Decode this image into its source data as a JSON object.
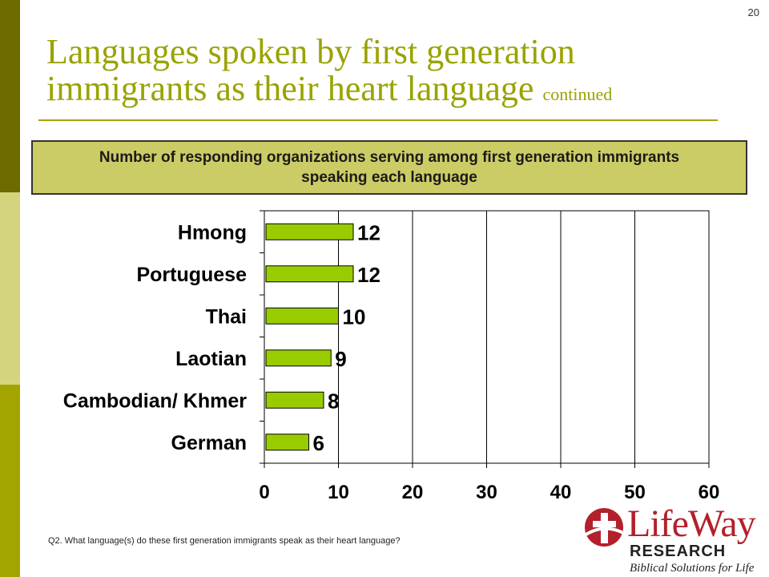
{
  "slide_number": "20",
  "title": {
    "main": "Languages spoken by first generation immigrants as their heart language",
    "suffix": "continued"
  },
  "subtitle": "Number of responding organizations serving among first generation immigrants speaking each language",
  "footnote": "Q2. What language(s) do these first generation immigrants speak as their heart language?",
  "logo": {
    "name": "LifeWay",
    "division": "RESEARCH",
    "tagline": "Biblical Solutions for Life"
  },
  "colors": {
    "bar": "#99cc00",
    "title": "#99a300",
    "subtitle_bg": "#cccc66",
    "logo_red": "#b3202c"
  },
  "chart_data": {
    "type": "bar",
    "orientation": "horizontal",
    "categories": [
      "Hmong",
      "Portuguese",
      "Thai",
      "Laotian",
      "Cambodian/ Khmer",
      "German"
    ],
    "values": [
      12,
      12,
      10,
      9,
      8,
      6
    ],
    "xlim": [
      0,
      60
    ],
    "xticks": [
      0,
      10,
      20,
      30,
      40,
      50,
      60
    ],
    "grid": "vertical"
  }
}
